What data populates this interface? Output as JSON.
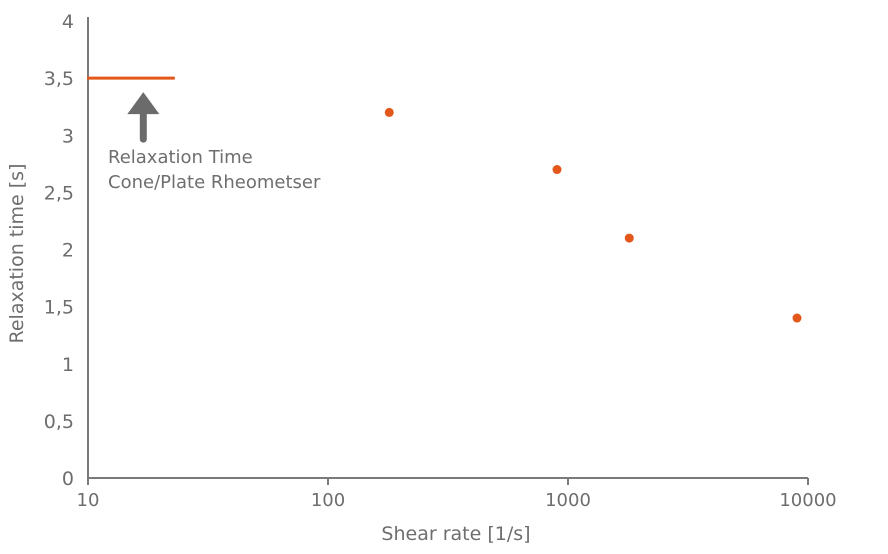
{
  "chart_data": {
    "type": "scatter",
    "xlabel": "Shear rate [1/s]",
    "ylabel": "Relaxation time [s]",
    "x_scale": "log",
    "xlim": [
      10,
      10000
    ],
    "ylim": [
      0,
      4
    ],
    "x_ticks": [
      10,
      100,
      1000,
      10000
    ],
    "x_tick_labels": [
      "10",
      "100",
      "1000",
      "10000"
    ],
    "y_ticks": [
      0,
      0.5,
      1,
      1.5,
      2,
      2.5,
      3,
      3.5,
      4
    ],
    "y_tick_labels": [
      "0",
      "0,5",
      "1",
      "1,5",
      "2",
      "2,5",
      "3",
      "3,5",
      "4"
    ],
    "grid": false,
    "colors": {
      "series": "#e3571b",
      "axis": "#7a7a7a",
      "text": "#6e6e6e",
      "arrow": "#6b6b6b"
    },
    "series": [
      {
        "x": [
          180,
          900,
          1800,
          9000
        ],
        "y": [
          3.2,
          2.7,
          2.1,
          1.4
        ]
      }
    ],
    "reference_line": {
      "y": 3.5,
      "x_range": [
        10,
        23
      ]
    },
    "annotation": {
      "lines": [
        "Relaxation Time",
        "Cone/Plate Rheometser"
      ],
      "points_to_x": 17,
      "arrow": "up-arrow"
    }
  }
}
